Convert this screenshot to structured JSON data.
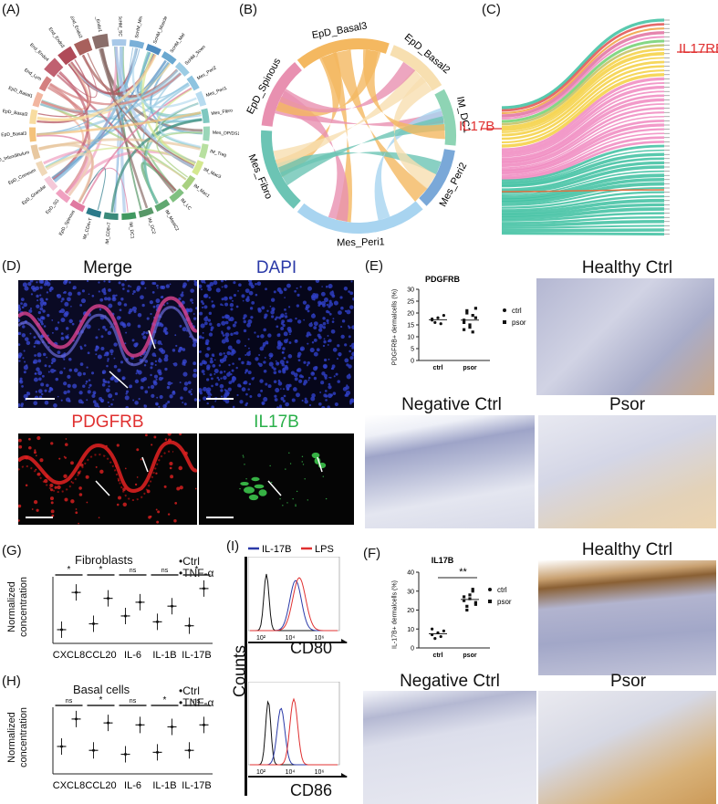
{
  "panels": {
    "A": "(A)",
    "B": "(B)",
    "C": "(C)",
    "D": "(D)",
    "E": "(E)",
    "F": "(F)",
    "G": "(G)",
    "H": "(H)",
    "I": "(I)"
  },
  "panelA": {
    "labels": [
      "EpD_Basal3",
      "EpD_Basal2",
      "EpD_Basal1",
      "End_Lym",
      "End_Endo4",
      "End_Endo3",
      "End_Endo2",
      "End_Endo1",
      "ScHM_SC",
      "ScHM_MeL",
      "ScHM_Muscle",
      "ScHM_Mel",
      "ScHM_Scwn",
      "Mes_Peri2",
      "Mes_Peri1",
      "Mes_Fibro",
      "Mes_DP/DS1",
      "IM_Treg",
      "IM_Mac3",
      "IM_Mac1",
      "IM_LC",
      "IM_MastC2",
      "IM_DC2",
      "IM_DC1",
      "IM_CD8+T",
      "IM_CD4+T",
      "EpD_Spinous",
      "EpD_SG",
      "EpD_Granular",
      "EpD_Corneum",
      "EpD_Infundibulum"
    ]
  },
  "panelB": {
    "labels": [
      "EpD_Basal3",
      "EpD_Basal2",
      "IM_DC1",
      "Mes_Peri2",
      "Mes_Peri1",
      "Mes_Fibro",
      "EpD_Spinous"
    ]
  },
  "panelC": {
    "il17rb": "IL17RB",
    "il17b": "IL17B"
  },
  "panelD": {
    "merge": "Merge",
    "dapi": "DAPI",
    "pdgfrb": "PDGFRB",
    "il17b": "IL17B"
  },
  "panelE": {
    "chart_title": "PDGFRB",
    "ylabel": "PDGFRB+ dermalcells (%)",
    "healthy": "Healthy Ctrl",
    "negative": "Negative Ctrl",
    "psor": "Psor",
    "legend_ctrl": "ctrl",
    "legend_psor": "psor"
  },
  "panelF": {
    "chart_title": "IL17B",
    "ylabel": "IL-17B+ dermalcells (%)",
    "significance": "**",
    "healthy": "Healthy Ctrl",
    "negative": "Negative Ctrl",
    "psor": "Psor",
    "legend_ctrl": "ctrl",
    "legend_psor": "psor"
  },
  "panelG": {
    "title": "Fibroblasts",
    "ylabel": "Normalized concentration",
    "legend_ctrl": "Ctrl",
    "legend_tnf": "TNF-α"
  },
  "panelH": {
    "title": "Basal cells",
    "ylabel": "Normalized concentration",
    "legend_ctrl": "Ctrl",
    "legend_tnf": "TNF-α"
  },
  "panelI": {
    "legend_il17b": "IL-17B",
    "legend_lps": "LPS",
    "ylabel": "Counts",
    "cd80": "CD80",
    "cd86": "CD86",
    "colors": {
      "il17b": "#2b3aa8",
      "lps": "#e03030",
      "ctrl": "#111111"
    }
  },
  "chart_data": [
    {
      "type": "scatter",
      "title": "PDGFRB",
      "ylabel": "PDGFRB+ dermalcells (%)",
      "categories": [
        "ctrl",
        "psor"
      ],
      "ylim": [
        0,
        30
      ],
      "yticks": [
        0,
        5,
        10,
        15,
        20,
        25,
        30
      ],
      "series": [
        {
          "name": "ctrl",
          "values": [
            17.5,
            16,
            18,
            15.5,
            19,
            17
          ]
        },
        {
          "name": "psor",
          "values": [
            17,
            20,
            14,
            12,
            18,
            16,
            21,
            15,
            19,
            22,
            13
          ]
        }
      ]
    },
    {
      "type": "scatter",
      "title": "IL17B",
      "ylabel": "IL-17B+ dermalcells (%)",
      "categories": [
        "ctrl",
        "psor"
      ],
      "ylim": [
        0,
        40
      ],
      "yticks": [
        0,
        10,
        20,
        30,
        40
      ],
      "series": [
        {
          "name": "ctrl",
          "values": [
            7,
            5,
            8,
            6,
            9,
            10
          ]
        },
        {
          "name": "psor",
          "values": [
            25,
            22,
            28,
            30,
            24,
            27,
            20,
            26,
            31,
            23
          ]
        }
      ]
    },
    {
      "type": "scatter",
      "title": "Fibroblasts",
      "categories": [
        "CXCL8",
        "CCL20",
        "IL-6",
        "IL-1B",
        "IL-17B"
      ],
      "significance": [
        "*",
        "*",
        "ns",
        "ns",
        "*"
      ],
      "series": [
        {
          "name": "Ctrl",
          "values": [
            0.85,
            1.0,
            1.2,
            1.05,
            0.95
          ]
        },
        {
          "name": "TNF-α",
          "values": [
            1.8,
            1.65,
            1.55,
            1.45,
            1.9
          ]
        }
      ]
    },
    {
      "type": "scatter",
      "title": "Basal cells",
      "categories": [
        "CXCL8",
        "CCL20",
        "IL-6",
        "IL-1B",
        "IL-17B"
      ],
      "significance": [
        "ns",
        "*",
        "ns",
        "*",
        "ns"
      ],
      "series": [
        {
          "name": "Ctrl",
          "values": [
            1.2,
            1.1,
            1.0,
            1.05,
            1.1
          ]
        },
        {
          "name": "TNF-α",
          "values": [
            1.9,
            1.8,
            1.75,
            1.7,
            1.75
          ]
        }
      ]
    }
  ]
}
